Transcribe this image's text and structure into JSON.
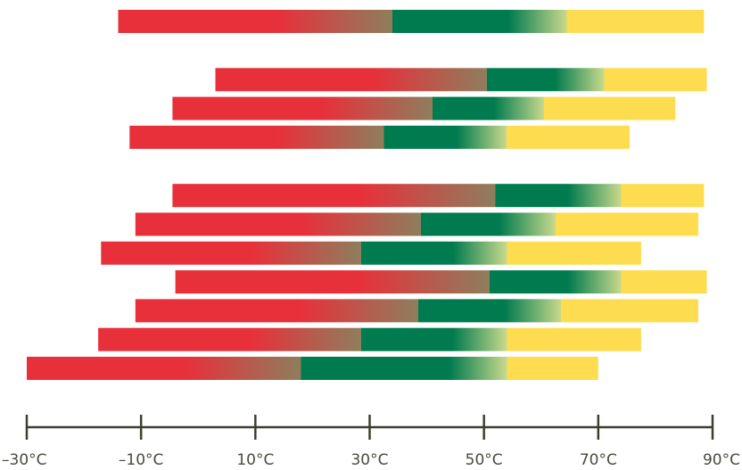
{
  "chart_data": {
    "type": "bar",
    "orientation": "horizontal",
    "title": "",
    "xlabel": "",
    "ylabel": "",
    "unit": "°C",
    "xlim": [
      -30,
      90
    ],
    "xticks": [
      -30,
      -10,
      10,
      30,
      50,
      70,
      90
    ],
    "xtick_labels": [
      "–30°C",
      "–10°C",
      "10°C",
      "30°C",
      "50°C",
      "70°C",
      "90°C"
    ],
    "grid": false,
    "legend": "none",
    "colors": {
      "red": "#e8303a",
      "green": "#007b4f",
      "yellow": "#fddc50",
      "axis": "#3e3e30"
    },
    "groups": [
      {
        "bars": [
          {
            "start": -14,
            "red_end": 34,
            "green_end": 64.5,
            "end": 88.5
          }
        ]
      },
      {
        "bars": [
          {
            "start": 3,
            "red_end": 50.5,
            "green_end": 71,
            "end": 89
          },
          {
            "start": -4.5,
            "red_end": 41,
            "green_end": 60.5,
            "end": 83.5
          },
          {
            "start": -12,
            "red_end": 32.5,
            "green_end": 54,
            "end": 75.5
          }
        ]
      },
      {
        "bars": [
          {
            "start": -4.5,
            "red_end": 52,
            "green_end": 74,
            "end": 88.5
          },
          {
            "start": -11,
            "red_end": 39,
            "green_end": 62.5,
            "end": 87.5
          },
          {
            "start": -17,
            "red_end": 28.5,
            "green_end": 54,
            "end": 77.5
          },
          {
            "start": -4,
            "red_end": 51,
            "green_end": 74,
            "end": 89
          },
          {
            "start": -11,
            "red_end": 38.5,
            "green_end": 63.5,
            "end": 87.5
          },
          {
            "start": -17.5,
            "red_end": 28.5,
            "green_end": 54,
            "end": 77.5
          },
          {
            "start": -30,
            "red_end": 18,
            "green_end": 54,
            "end": 70
          }
        ]
      }
    ]
  }
}
